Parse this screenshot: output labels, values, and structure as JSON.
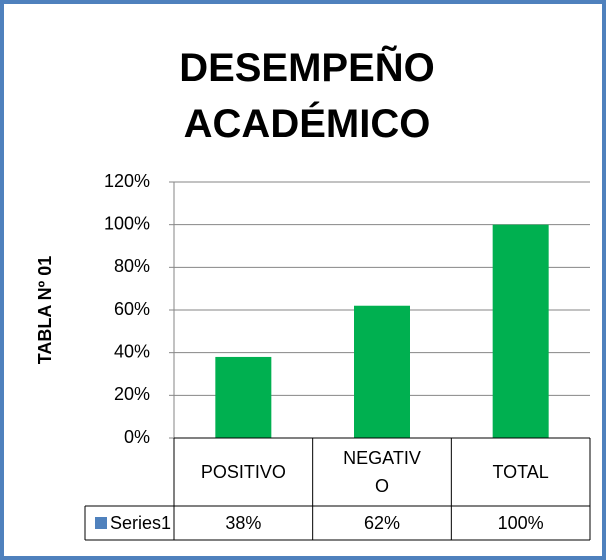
{
  "chart_data": {
    "type": "bar",
    "title": "DESEMPEÑO ACADÉMICO",
    "y_label": "TABLA Nº 01",
    "categories": [
      "POSITIVO",
      "NEGATIVO",
      "TOTAL"
    ],
    "series": [
      {
        "name": "Series1",
        "color": "#00b050",
        "legend_color": "#4f81bd",
        "values": [
          38,
          62,
          100
        ],
        "value_labels": [
          "38%",
          "62%",
          "100%"
        ]
      }
    ],
    "ylim": [
      0,
      120
    ],
    "yticks": [
      {
        "value": 0,
        "label": "0%"
      },
      {
        "value": 20,
        "label": "20%"
      },
      {
        "value": 40,
        "label": "40%"
      },
      {
        "value": 60,
        "label": "60%"
      },
      {
        "value": 80,
        "label": "80%"
      },
      {
        "value": 100,
        "label": "100%"
      },
      {
        "value": 120,
        "label": "120%"
      }
    ],
    "grid": true
  }
}
